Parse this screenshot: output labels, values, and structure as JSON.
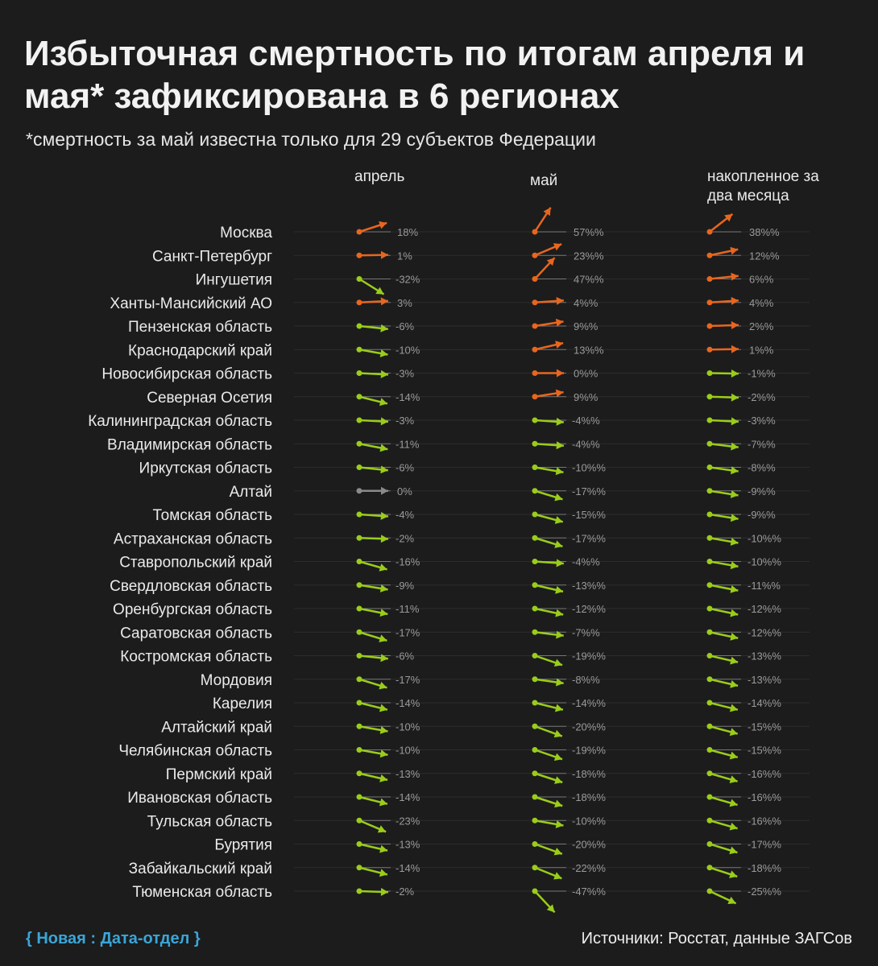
{
  "header": {
    "title": "Избыточная смертность по итогам апреля и мая* зафиксирована в 6 регионах",
    "subtitle": "*смертность за май известна только для 29 субъектов Федерации"
  },
  "footer": {
    "brand": "{ Новая : Дата-отдел }",
    "source": "Источники: Росстат, данные ЗАГСов"
  },
  "colors": {
    "up": "#e8661e",
    "down": "#9acd1a",
    "flat": "#8a8a8a",
    "label": "#9a9a9a",
    "text": "#eaeaea"
  },
  "chart_data": {
    "type": "slope-arrows",
    "title": "Избыточная смертность по итогам апреля и мая* зафиксирована в 6 регионах",
    "columns": [
      "апрель",
      "май",
      "накопленное за два месяца"
    ],
    "regions": [
      "Москва",
      "Санкт-Петербург",
      "Ингушетия",
      "Ханты-Мансийский АО",
      "Пензенская область",
      "Краснодарский край",
      "Новосибирская область",
      "Северная Осетия",
      "Калининградская область",
      "Владимирская область",
      "Иркутская область",
      "Алтай",
      "Томская область",
      "Астраханская область",
      "Ставропольский край",
      "Свердловская область",
      "Оренбургская область",
      "Саратовская область",
      "Костромская область",
      "Мордовия",
      "Карелия",
      "Алтайский край",
      "Челябинская область",
      "Пермский край",
      "Ивановская область",
      "Тульская область",
      "Бурятия",
      "Забайкальский край",
      "Тюменская область"
    ],
    "series": [
      {
        "name": "апрель",
        "values": [
          18,
          1,
          -32,
          3,
          -6,
          -10,
          -3,
          -14,
          -3,
          -11,
          -6,
          0,
          -4,
          -2,
          -16,
          -9,
          -11,
          -17,
          -6,
          -17,
          -14,
          -10,
          -10,
          -13,
          -14,
          -23,
          -13,
          -14,
          -2
        ],
        "labels": [
          "18%",
          "1%",
          "-32%",
          "3%",
          "-6%",
          "-10%",
          "-3%",
          "-14%",
          "-3%",
          "-11%",
          "-6%",
          "0%",
          "-4%",
          "-2%",
          "-16%",
          "-9%",
          "-11%",
          "-17%",
          "-6%",
          "-17%",
          "-14%",
          "-10%",
          "-10%",
          "-13%",
          "-14%",
          "-23%",
          "-13%",
          "-14%",
          "-2%"
        ],
        "trend": [
          "up",
          "up",
          "down",
          "up",
          "down",
          "down",
          "down",
          "down",
          "down",
          "down",
          "down",
          "flat",
          "down",
          "down",
          "down",
          "down",
          "down",
          "down",
          "down",
          "down",
          "down",
          "down",
          "down",
          "down",
          "down",
          "down",
          "down",
          "down",
          "down"
        ]
      },
      {
        "name": "май",
        "values": [
          57,
          23,
          47,
          4,
          9,
          13,
          0,
          9,
          -4,
          -4,
          -10,
          -17,
          -15,
          -17,
          -4,
          -13,
          -12,
          -7,
          -19,
          -8,
          -14,
          -20,
          -19,
          -18,
          -18,
          -10,
          -20,
          -22,
          -47
        ],
        "labels": [
          "57%%",
          "23%%",
          "47%%",
          "4%%",
          "9%%",
          "13%%",
          "0%%",
          "9%%",
          "-4%%",
          "-4%%",
          "-10%%",
          "-17%%",
          "-15%%",
          "-17%%",
          "-4%%",
          "-13%%",
          "-12%%",
          "-7%%",
          "-19%%",
          "-8%%",
          "-14%%",
          "-20%%",
          "-19%%",
          "-18%%",
          "-18%%",
          "-10%%",
          "-20%%",
          "-22%%",
          "-47%%"
        ],
        "trend": [
          "up",
          "up",
          "up",
          "up",
          "up",
          "up",
          "up",
          "up",
          "down",
          "down",
          "down",
          "down",
          "down",
          "down",
          "down",
          "down",
          "down",
          "down",
          "down",
          "down",
          "down",
          "down",
          "down",
          "down",
          "down",
          "down",
          "down",
          "down",
          "down"
        ]
      },
      {
        "name": "накопленное за два месяца",
        "values": [
          38,
          12,
          6,
          4,
          2,
          1,
          -1,
          -2,
          -3,
          -7,
          -8,
          -9,
          -9,
          -10,
          -10,
          -11,
          -12,
          -12,
          -13,
          -13,
          -14,
          -15,
          -15,
          -16,
          -16,
          -16,
          -17,
          -18,
          -25
        ],
        "labels": [
          "38%%",
          "12%%",
          "6%%",
          "4%%",
          "2%%",
          "1%%",
          "-1%%",
          "-2%%",
          "-3%%",
          "-7%%",
          "-8%%",
          "-9%%",
          "-9%%",
          "-10%%",
          "-10%%",
          "-11%%",
          "-12%%",
          "-12%%",
          "-13%%",
          "-13%%",
          "-14%%",
          "-15%%",
          "-15%%",
          "-16%%",
          "-16%%",
          "-16%%",
          "-17%%",
          "-18%%",
          "-25%%"
        ],
        "trend": [
          "up",
          "up",
          "up",
          "up",
          "up",
          "up",
          "down",
          "down",
          "down",
          "down",
          "down",
          "down",
          "down",
          "down",
          "down",
          "down",
          "down",
          "down",
          "down",
          "down",
          "down",
          "down",
          "down",
          "down",
          "down",
          "down",
          "down",
          "down",
          "down"
        ]
      }
    ]
  }
}
